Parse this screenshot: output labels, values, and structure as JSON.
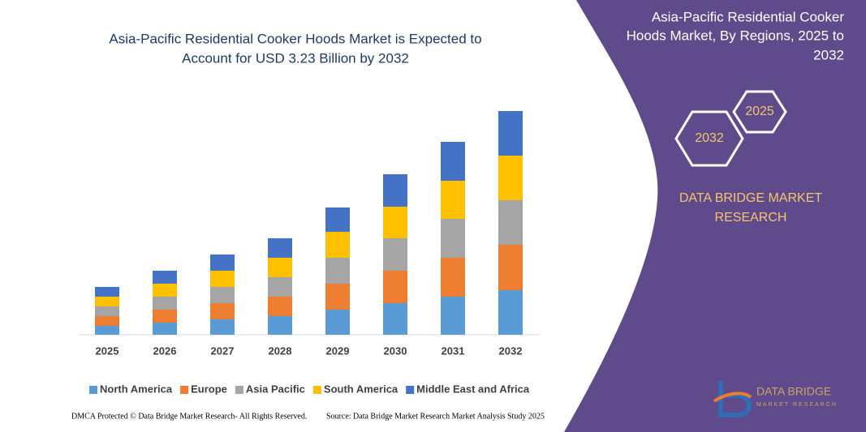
{
  "chart_data": {
    "type": "stacked-bar",
    "title": [
      "Asia-Pacific Residential Cooker Hoods Market is Expected to",
      "Account for USD 3.23 Billion by 2032"
    ],
    "categories": [
      "2025",
      "2026",
      "2027",
      "2028",
      "2029",
      "2030",
      "2031",
      "2032"
    ],
    "series": [
      {
        "name": "North America",
        "color": "#5b9bd5",
        "values": [
          11,
          15,
          19,
          23,
          31,
          39,
          47,
          55
        ]
      },
      {
        "name": "Europe",
        "color": "#ed7d31",
        "values": [
          12,
          16,
          20,
          24,
          32,
          40,
          48,
          56
        ]
      },
      {
        "name": "Asia Pacific",
        "color": "#a5a5a5",
        "values": [
          12,
          16,
          20,
          24,
          32,
          40,
          48,
          55
        ]
      },
      {
        "name": "South America",
        "color": "#ffc000",
        "values": [
          12,
          16,
          20,
          24,
          32,
          39,
          47,
          55
        ]
      },
      {
        "name": "Middle East and Africa",
        "color": "#4472c4",
        "values": [
          12,
          16,
          20,
          24,
          30,
          40,
          48,
          55
        ]
      }
    ],
    "ylim": [
      0,
      280
    ]
  },
  "panel": {
    "title": [
      "Asia-Pacific Residential Cooker",
      "Hoods Market, By Regions, 2025 to",
      "2032"
    ],
    "hex_start": "2025",
    "hex_end": "2032",
    "brand": [
      "DATA BRIDGE MARKET",
      "RESEARCH"
    ],
    "logo": [
      "DATA BRIDGE",
      "MARKET RESEARCH"
    ]
  },
  "footer": {
    "left": "DMCA Protected © Data Bridge Market Research- All Rights Reserved.",
    "right": "Source: Data Bridge Market Research Market Analysis Study 2025"
  }
}
